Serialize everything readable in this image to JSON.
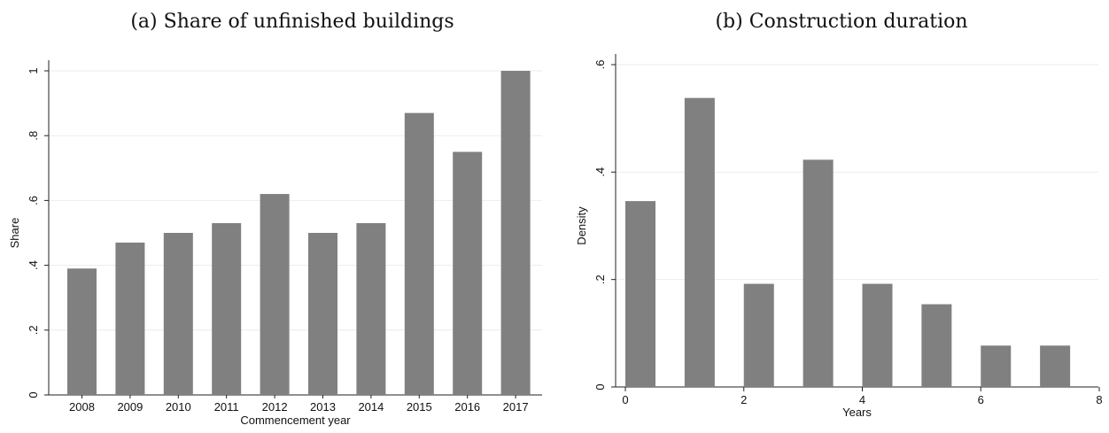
{
  "panels": {
    "a": {
      "title": "(a) Share of unfinished buildings"
    },
    "b": {
      "title": "(b) Construction duration"
    }
  },
  "bar_color": "#808080",
  "grid_color": "#e6eef2",
  "chart_data": [
    {
      "type": "bar",
      "title": "(a) Share of unfinished buildings",
      "xlabel": "Commencement year",
      "ylabel": "Share",
      "categories": [
        "2008",
        "2009",
        "2010",
        "2011",
        "2012",
        "2013",
        "2014",
        "2015",
        "2016",
        "2017"
      ],
      "values": [
        0.39,
        0.47,
        0.5,
        0.53,
        0.62,
        0.5,
        0.53,
        0.87,
        0.75,
        1.0
      ],
      "ylim": [
        0,
        1
      ],
      "yticks": [
        0,
        0.2,
        0.4,
        0.6,
        0.8,
        1
      ],
      "ytick_labels": [
        "0",
        ".2",
        ".4",
        ".6",
        ".8",
        "1"
      ],
      "grid": true
    },
    {
      "type": "bar",
      "title": "(b) Construction duration",
      "xlabel": "Years",
      "ylabel": "Density",
      "x": [
        0,
        1,
        2,
        3,
        4,
        5,
        6,
        7
      ],
      "values": [
        0.346,
        0.538,
        0.192,
        0.423,
        0.192,
        0.154,
        0.077,
        0.077
      ],
      "xlim": [
        0,
        8
      ],
      "ylim": [
        0,
        0.6
      ],
      "xticks": [
        0,
        2,
        4,
        6,
        8
      ],
      "xtick_labels": [
        "0",
        "2",
        "4",
        "6",
        "8"
      ],
      "yticks": [
        0,
        0.2,
        0.4,
        0.6
      ],
      "ytick_labels": [
        "0",
        ".2",
        ".4",
        ".6"
      ],
      "grid": true
    }
  ]
}
